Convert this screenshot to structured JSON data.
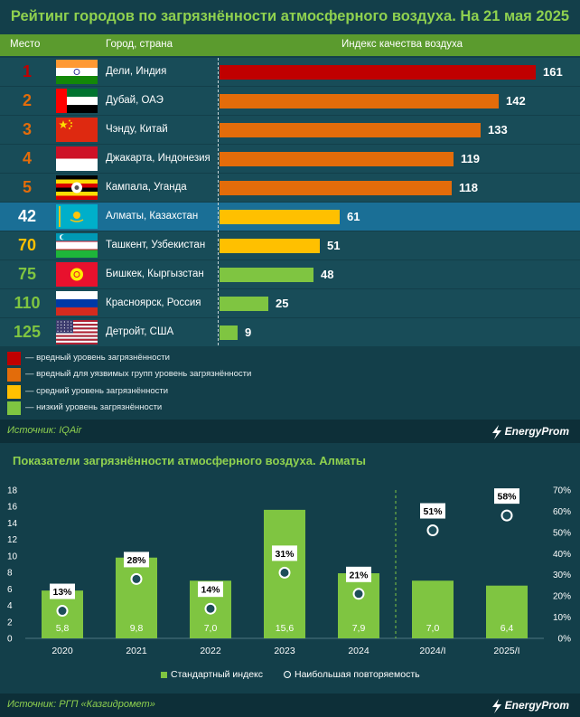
{
  "title": "Рейтинг городов по загрязнённости атмосферного воздуха. На 21 мая 2025",
  "table_header": {
    "rank": "Место",
    "city": "Город, страна",
    "index": "Индекс качества воздуха"
  },
  "ranking": [
    {
      "rank": "1",
      "city": "Дели, Индия",
      "value": 161,
      "level": "harmful",
      "flag": "india-flag-icon"
    },
    {
      "rank": "2",
      "city": "Дубай, ОАЭ",
      "value": 142,
      "level": "sensitive",
      "flag": "uae-flag-icon"
    },
    {
      "rank": "3",
      "city": "Чэнду, Китай",
      "value": 133,
      "level": "sensitive",
      "flag": "china-flag-icon"
    },
    {
      "rank": "4",
      "city": "Джакарта, Индонезия",
      "value": 119,
      "level": "sensitive",
      "flag": "indonesia-flag-icon"
    },
    {
      "rank": "5",
      "city": "Кампала, Уганда",
      "value": 118,
      "level": "sensitive",
      "flag": "uganda-flag-icon"
    },
    {
      "rank": "42",
      "city": "Алматы, Казахстан",
      "value": 61,
      "level": "moderate",
      "flag": "kazakhstan-flag-icon",
      "highlight": true
    },
    {
      "rank": "70",
      "city": "Ташкент, Узбекистан",
      "value": 51,
      "level": "moderate",
      "flag": "uzbekistan-flag-icon"
    },
    {
      "rank": "75",
      "city": "Бишкек, Кыргызстан",
      "value": 48,
      "level": "low",
      "flag": "kyrgyzstan-flag-icon"
    },
    {
      "rank": "110",
      "city": "Красноярск, Россия",
      "value": 25,
      "level": "low",
      "flag": "russia-flag-icon"
    },
    {
      "rank": "125",
      "city": "Детройт, США",
      "value": 9,
      "level": "low",
      "flag": "usa-flag-icon"
    }
  ],
  "levels": {
    "harmful": {
      "color": "#c00000",
      "label": "— вредный уровень загрязнённости"
    },
    "sensitive": {
      "color": "#e36c0a",
      "label": "— вредный для уязвимых групп уровень загрязнённости"
    },
    "moderate": {
      "color": "#ffc000",
      "label": "— средний уровень загрязнённости"
    },
    "low": {
      "color": "#7fc541",
      "label": "— низкий уровень загрязнённости"
    }
  },
  "source1": "Источник: IQAir",
  "logo": "EnergyProm",
  "title2": "Показатели загрязнённости атмосферного воздуха. Алматы",
  "source2": "Источник: РГП «Казгидромет»",
  "chart_data": [
    {
      "type": "bar",
      "title": "Рейтинг городов по загрязнённости атмосферного воздуха. На 21 мая 2025",
      "categories": [
        "Дели, Индия",
        "Дубай, ОАЭ",
        "Чэнду, Китай",
        "Джакарта, Индонезия",
        "Кампала, Уганда",
        "Алматы, Казахстан",
        "Ташкент, Узбекистан",
        "Бишкек, Кыргызстан",
        "Красноярск, Россия",
        "Детройт, США"
      ],
      "values": [
        161,
        142,
        133,
        119,
        118,
        61,
        51,
        48,
        25,
        9
      ],
      "xlabel": "Индекс качества воздуха",
      "orientation": "horizontal"
    },
    {
      "type": "bar",
      "title": "Показатели загрязнённости атмосферного воздуха. Алматы",
      "categories": [
        "2020",
        "2021",
        "2022",
        "2023",
        "2024",
        "2024/I",
        "2025/I"
      ],
      "series": [
        {
          "name": "Стандартный индекс",
          "type": "bar",
          "axis": "left",
          "values": [
            5.8,
            9.8,
            7.0,
            15.6,
            7.9,
            7.0,
            6.4
          ],
          "labels": [
            "5,8",
            "9,8",
            "7,0",
            "15,6",
            "7,9",
            "7,0",
            "6,4"
          ],
          "color": "#7fc541"
        },
        {
          "name": "Наибольшая повторяемость",
          "type": "scatter",
          "axis": "right",
          "values": [
            13,
            28,
            14,
            31,
            21,
            51,
            58
          ],
          "labels": [
            "13%",
            "28%",
            "14%",
            "31%",
            "21%",
            "51%",
            "58%"
          ]
        }
      ],
      "ylim": [
        0,
        18
      ],
      "yticks": [
        "0",
        "2",
        "4",
        "6",
        "8",
        "10",
        "12",
        "14",
        "16",
        "18"
      ],
      "y2lim": [
        0,
        70
      ],
      "y2ticks": [
        "0%",
        "10%",
        "20%",
        "30%",
        "40%",
        "50%",
        "60%",
        "70%"
      ],
      "grid": false,
      "legend": "bottom"
    }
  ]
}
